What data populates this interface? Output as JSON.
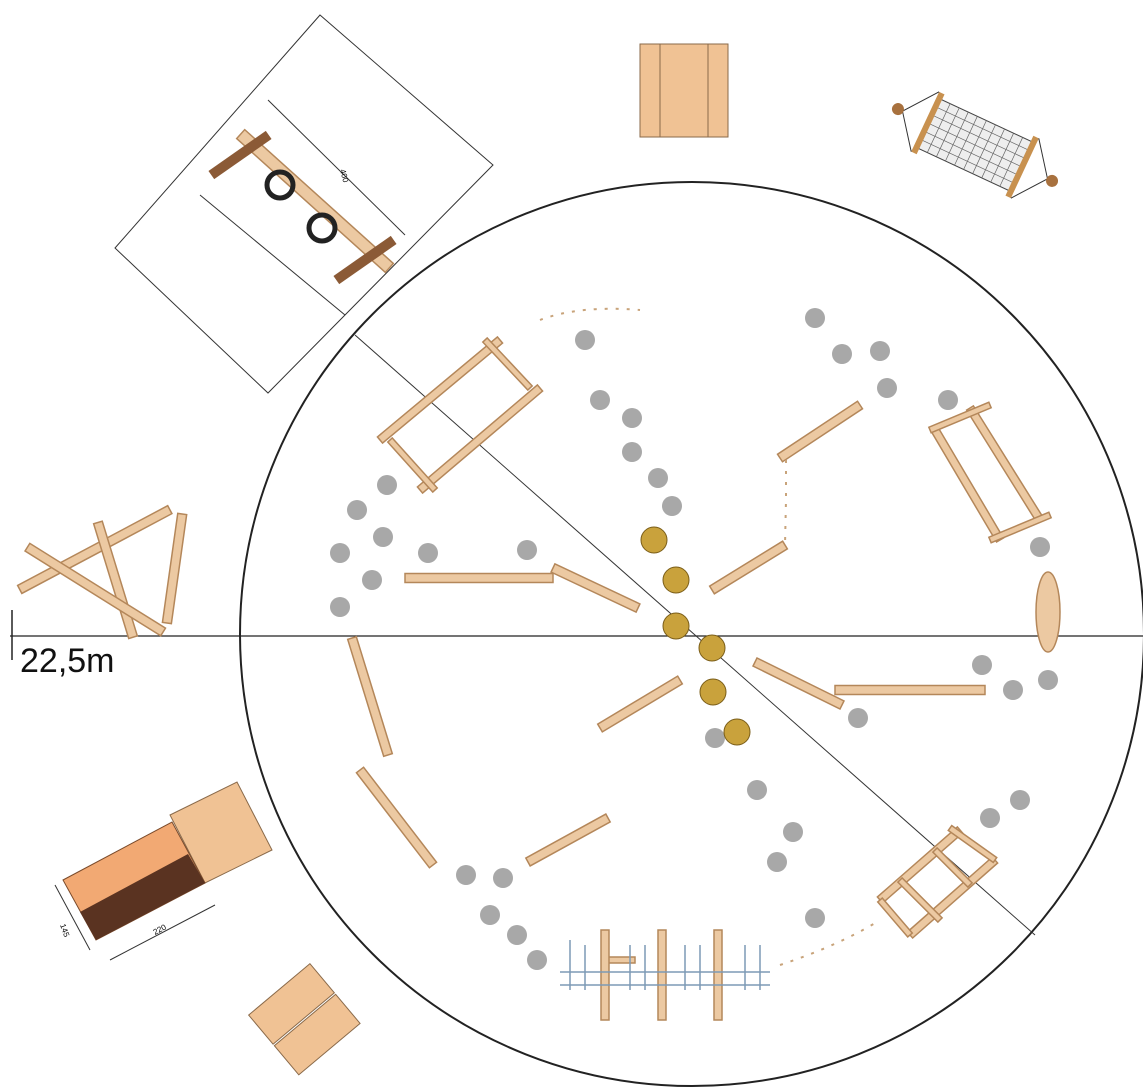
{
  "scale_label": "22,5m",
  "dimensions": [
    "400",
    "220",
    "145"
  ]
}
